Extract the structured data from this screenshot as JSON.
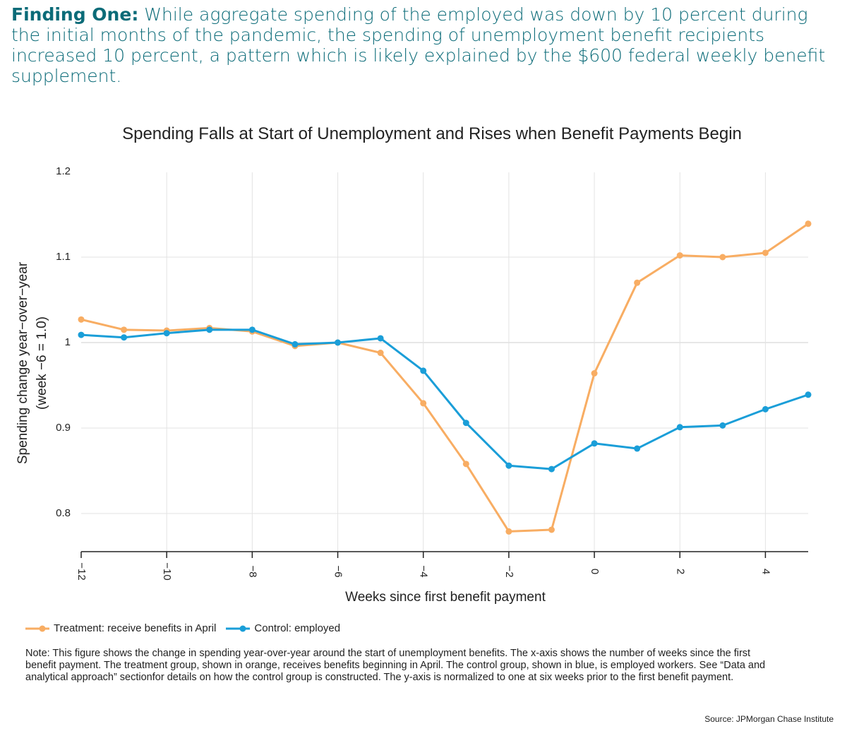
{
  "finding": {
    "lead": "Finding One:",
    "text": " While aggregate spending of the employed was down by 10 percent during the initial months of the pandemic, the spending of unemployment benefit recipients increased 10 percent, a pattern which is likely explained by the $600 federal weekly benefit supplement."
  },
  "note": "Note: This figure shows the change in spending year-over-year around the start of unemployment benefits. The x-axis shows the number of weeks since the first benefit payment. The treatment group, shown in orange, receives benefits beginning in April. The control group, shown in blue, is employed workers. See “Data and analytical approach” sectionfor details on how the control group is constructed. The y-axis is normalized to one at six weeks prior to the first benefit payment.",
  "source": "Source: JPMorgan Chase Institute",
  "chart_data": {
    "type": "line",
    "title": "Spending Falls at Start of Unemployment and Rises when Benefit Payments Begin",
    "xlabel": "Weeks since first benefit payment",
    "ylabel": [
      "Spending change year−over−year",
      "(week −6 = 1.0)"
    ],
    "xlim": [
      -12,
      5
    ],
    "ylim": [
      0.75,
      1.2
    ],
    "x_ticks": [
      -12,
      -10,
      -8,
      -6,
      -4,
      -2,
      0,
      2,
      4
    ],
    "x_tick_labels": [
      "−12",
      "−10",
      "−8",
      "−6",
      "−4",
      "−2",
      "0",
      "2",
      "4"
    ],
    "y_ticks": [
      0.8,
      0.9,
      1.0,
      1.1,
      1.2
    ],
    "y_tick_labels": [
      "0.8",
      "0.9",
      "1",
      "1.1",
      "1.2"
    ],
    "grid": true,
    "legend_position": "bottom-left",
    "x": [
      -12,
      -11,
      -10,
      -9,
      -8,
      -7,
      -6,
      -5,
      -4,
      -3,
      -2,
      -1,
      0,
      1,
      2,
      3,
      4,
      5
    ],
    "series": [
      {
        "name": "Treatment: receive benefits in April",
        "color": "#f8ad63",
        "values": [
          1.027,
          1.015,
          1.014,
          1.017,
          1.013,
          0.996,
          1.0,
          0.988,
          0.929,
          0.858,
          0.779,
          0.781,
          0.964,
          1.07,
          1.102,
          1.1,
          1.105,
          1.139
        ]
      },
      {
        "name": "Control: employed",
        "color": "#1a9ed8",
        "values": [
          1.009,
          1.006,
          1.011,
          1.015,
          1.015,
          0.998,
          1.0,
          1.005,
          0.967,
          0.906,
          0.856,
          0.852,
          0.882,
          0.876,
          0.901,
          0.903,
          0.922,
          0.939
        ]
      }
    ]
  }
}
